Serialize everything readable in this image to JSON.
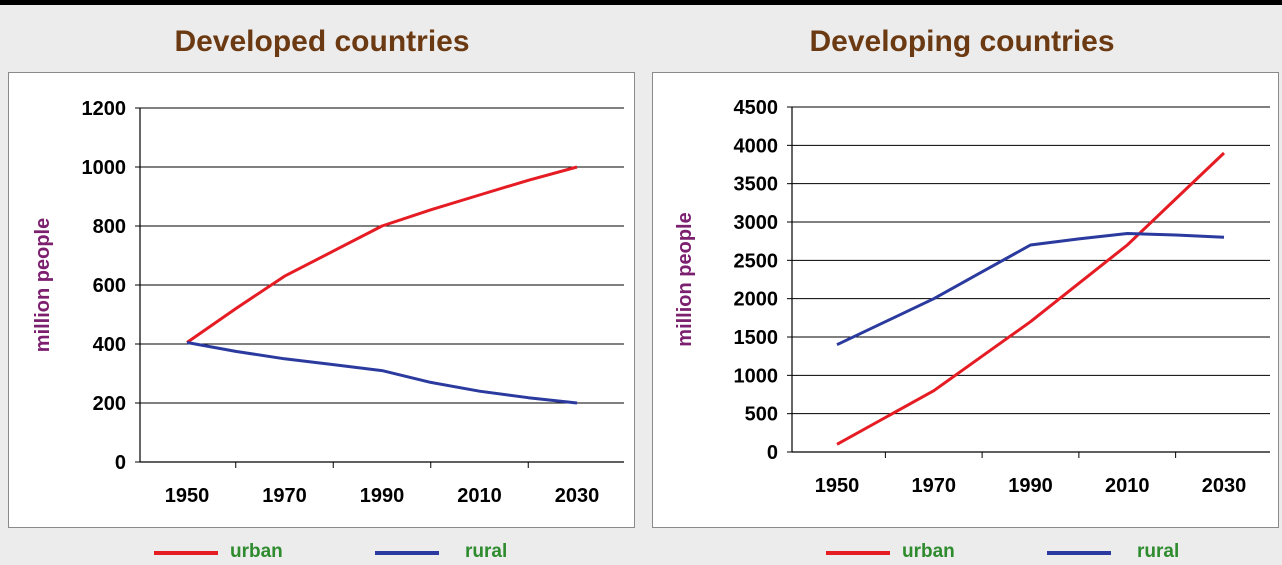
{
  "colors": {
    "urban": "#e51c23",
    "rural": "#2b3a9e",
    "title": "#6b3a12",
    "ylabel": "#7b1f6e",
    "legend_text": "#2e8b2e"
  },
  "legend": {
    "urban_label": "urban",
    "rural_label": "rural"
  },
  "chart_data": [
    {
      "type": "line",
      "title": "Developed countries",
      "ylabel": "million people",
      "xlabel": "",
      "x_ticks": [
        "1950",
        "1970",
        "1990",
        "2010",
        "2030"
      ],
      "ylim": [
        0,
        1200
      ],
      "y_ticks": [
        0,
        200,
        400,
        600,
        800,
        1000,
        1200
      ],
      "grid": true,
      "legend_position": "bottom",
      "series": [
        {
          "name": "urban",
          "color": "#e51c23",
          "x": [
            1950,
            1960,
            1970,
            1980,
            1990,
            2000,
            2010,
            2020,
            2030
          ],
          "values": [
            405,
            520,
            630,
            715,
            800,
            855,
            905,
            955,
            1000
          ]
        },
        {
          "name": "rural",
          "color": "#2b3a9e",
          "x": [
            1950,
            1960,
            1970,
            1980,
            1990,
            2000,
            2010,
            2020,
            2030
          ],
          "values": [
            405,
            375,
            350,
            330,
            310,
            270,
            240,
            218,
            200
          ]
        }
      ]
    },
    {
      "type": "line",
      "title": "Developing countries",
      "ylabel": "million people",
      "xlabel": "",
      "x_ticks": [
        "1950",
        "1970",
        "1990",
        "2010",
        "2030"
      ],
      "ylim": [
        0,
        4500
      ],
      "y_ticks": [
        0,
        500,
        1000,
        1500,
        2000,
        2500,
        3000,
        3500,
        4000,
        4500
      ],
      "grid": true,
      "legend_position": "bottom",
      "series": [
        {
          "name": "urban",
          "color": "#e51c23",
          "x": [
            1950,
            1960,
            1970,
            1980,
            1990,
            2000,
            2010,
            2020,
            2030
          ],
          "values": [
            100,
            450,
            800,
            1250,
            1700,
            2200,
            2700,
            3300,
            3900
          ]
        },
        {
          "name": "rural",
          "color": "#2b3a9e",
          "x": [
            1950,
            1960,
            1970,
            1980,
            1990,
            2000,
            2010,
            2020,
            2030
          ],
          "values": [
            1400,
            1700,
            2000,
            2350,
            2700,
            2780,
            2850,
            2830,
            2800
          ]
        }
      ]
    }
  ]
}
